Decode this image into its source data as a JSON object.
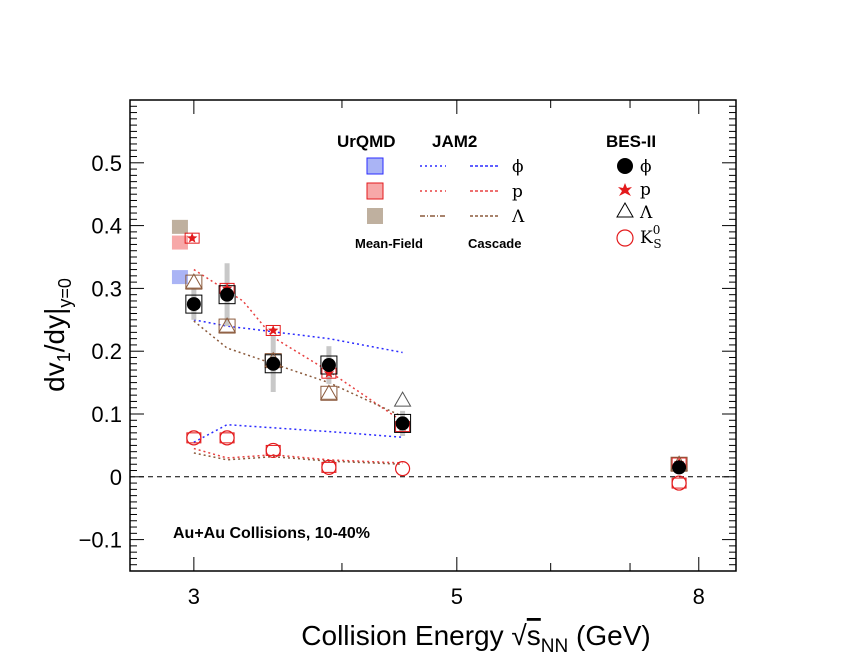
{
  "chart_data": {
    "type": "scatter",
    "xlabel_main": "Collision Energy ",
    "xlabel_sqrt": "√",
    "xlabel_s": "s",
    "xlabel_sub": "NN",
    "xlabel_unit": " (GeV)",
    "ylabel_main": "dv",
    "ylabel_sub1": "1",
    "ylabel_mid": "/dy|",
    "ylabel_sub2": "y=0",
    "x_scale": "log",
    "xlim": [
      2.65,
      8.6
    ],
    "ylim": [
      -0.15,
      0.6
    ],
    "x_ticks": [
      {
        "v": 3,
        "label": "3"
      },
      {
        "v": 5,
        "label": "5"
      },
      {
        "v": 8,
        "label": "8"
      }
    ],
    "y_ticks": [
      {
        "v": -0.1,
        "label": "−0.1"
      },
      {
        "v": 0,
        "label": "0"
      },
      {
        "v": 0.1,
        "label": "0.1"
      },
      {
        "v": 0.2,
        "label": "0.2"
      },
      {
        "v": 0.3,
        "label": "0.3"
      },
      {
        "v": 0.4,
        "label": "0.4"
      },
      {
        "v": 0.5,
        "label": "0.5"
      }
    ],
    "annotation": "Au+Au Collisions, 10-40%",
    "legend": {
      "urqmd_head": "UrQMD",
      "jam_head": "JAM2",
      "bes_head": "BES-II",
      "meanfield": "Mean-Field",
      "cascade": "Cascade",
      "phi": "ϕ",
      "p": "p",
      "lambda": "Λ",
      "k0s_main": "K",
      "k0s_sup": "0",
      "k0s_sub": "S"
    },
    "colors": {
      "phi": "#000000",
      "proton": "#e31a1c",
      "lambda": "#8b5a3c",
      "k0s": "#e31a1c",
      "urqmd_phi": "#aab4f5",
      "urqmd_p": "#f7a8a8",
      "urqmd_lambda": "#bfb09f",
      "jam_phi": "#2b2bff",
      "jam_p": "#e84040",
      "jam_lambda": "#8b5a3c"
    },
    "urqmd_boxes": [
      {
        "species": "phi",
        "x": 2.92,
        "y": 0.318
      },
      {
        "species": "p",
        "x": 2.92,
        "y": 0.373
      },
      {
        "species": "lambda",
        "x": 2.92,
        "y": 0.398
      }
    ],
    "jam_lines": [
      {
        "species": "phi",
        "x": [
          3.0,
          3.2,
          3.9,
          4.5
        ],
        "y": [
          0.25,
          0.24,
          0.22,
          0.198
        ]
      },
      {
        "species": "p",
        "x": [
          3.0,
          3.3,
          3.5,
          3.9,
          4.5
        ],
        "y": [
          0.33,
          0.28,
          0.222,
          0.168,
          0.088
        ]
      },
      {
        "species": "lambda",
        "x": [
          3.0,
          3.2,
          3.5,
          3.9,
          4.5
        ],
        "y": [
          0.248,
          0.205,
          0.18,
          0.15,
          0.096
        ]
      },
      {
        "species": "phi",
        "x": [
          3.0,
          3.2,
          3.9,
          4.5
        ],
        "y": [
          0.055,
          0.083,
          0.072,
          0.063
        ]
      },
      {
        "species": "p",
        "x": [
          3.0,
          3.2,
          3.5,
          3.9,
          4.5
        ],
        "y": [
          0.045,
          0.03,
          0.035,
          0.027,
          0.022
        ]
      },
      {
        "species": "lambda",
        "x": [
          3.0,
          3.2,
          3.5,
          3.9,
          4.5
        ],
        "y": [
          0.038,
          0.027,
          0.032,
          0.025,
          0.02
        ]
      }
    ],
    "phi_points": {
      "x": [
        3.0,
        3.2,
        3.5,
        3.9,
        4.5,
        7.7
      ],
      "y": [
        0.275,
        0.29,
        0.18,
        0.178,
        0.085,
        0.015
      ],
      "err": [
        0.025,
        0.05,
        0.045,
        0.03,
        0.02,
        0.008
      ]
    },
    "proton_points": {
      "x": [
        2.99,
        3.2,
        3.5,
        3.9,
        4.5,
        7.7
      ],
      "y": [
        0.38,
        0.3,
        0.233,
        0.165,
        0.08,
        0.022
      ]
    },
    "lambda_points": {
      "x": [
        3.0,
        3.2,
        3.5,
        3.9,
        4.5,
        7.7
      ],
      "y": [
        0.31,
        0.24,
        0.185,
        0.133,
        0.122,
        0.02
      ]
    },
    "k0s_points": {
      "x": [
        3.0,
        3.2,
        3.5,
        3.9,
        4.5,
        7.7
      ],
      "y": [
        0.062,
        0.062,
        0.042,
        0.015,
        0.013,
        -0.01
      ]
    }
  }
}
